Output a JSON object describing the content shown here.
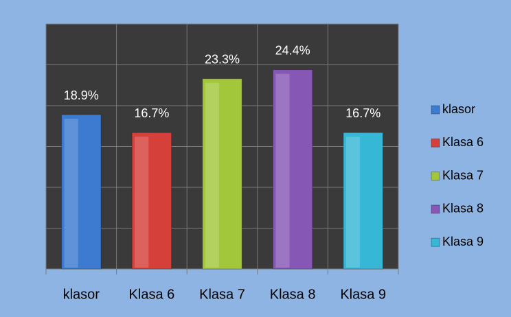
{
  "chart_data": {
    "type": "bar",
    "categories": [
      "klasor",
      "Klasa 6",
      "Klasa 7",
      "Klasa 8",
      "Klasa 9"
    ],
    "values": [
      18.9,
      16.7,
      23.3,
      24.4,
      16.7
    ],
    "value_labels": [
      "18.9%",
      "16.7%",
      "23.3%",
      "24.4%",
      "16.7%"
    ],
    "colors": [
      "#3c7bd0",
      "#d6403a",
      "#a3c73b",
      "#8757b6",
      "#36b7d6"
    ],
    "ylim": [
      0,
      30
    ],
    "yticks": [
      0,
      5,
      10,
      15,
      20,
      25,
      30
    ],
    "grid": true,
    "legend": "right"
  }
}
